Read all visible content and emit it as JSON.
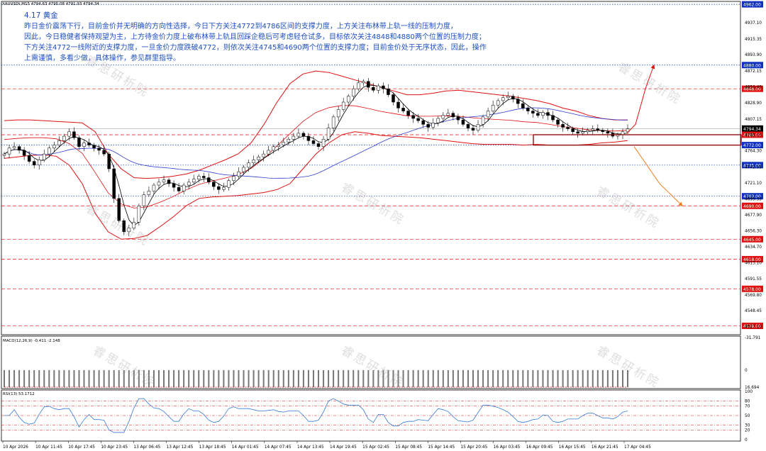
{
  "symbol_header": "XAUUSDt,M15  4794.63 4795.08 4791.93 4794.34",
  "annotation": {
    "title": "4.17 黄金",
    "lines": [
      "昨日金价震荡下行，目前金价并无明确的方向性选择，今日下方关注4772到4786区间的支撑力度，上方关注布林带上轨一线的压制力度，",
      "因此，今日稳健者保持观望为主，上方待金价力度上破布林带上轨且回踩企稳后可考虑轻仓试多，目标依次关注4848和4880两个位置的压制力度；",
      "下方关注4772一线附近的支撑力度，一旦金价力度跌破4772，则依次关注4745和4690两个位置的支撑力度；目前金价处于无序状态，因此，操作",
      "上需谨慎，多看少做，具体操作，参见群里指导。"
    ]
  },
  "watermark": "睿思研析院",
  "colors": {
    "red_band": "#e01010",
    "blue_ma": "#2f3fcf",
    "black_ma": "#000000",
    "arrow_up": "#e01010",
    "arrow_down": "#f08020",
    "level_blue": "#1030c0",
    "level_red": "#e01010",
    "bar_up": "#000000",
    "rsi_line": "#3a7bd5",
    "macd_signal": "#e01010"
  },
  "chart_data": {
    "type": "candlestick",
    "ylim": [
      4518,
      4964
    ],
    "x_ticks": [
      "10 Apr 2026",
      "10 Apr 11:45",
      "10 Apr 17:45",
      "10 Apr 23:45",
      "13 Apr 06:45",
      "13 Apr 12:45",
      "13 Apr 18:45",
      "14 Apr 01:45",
      "14 Apr 07:45",
      "14 Apr 13:45",
      "14 Apr 19:45",
      "15 Apr 02:45",
      "15 Apr 08:45",
      "15 Apr 14:45",
      "15 Apr 20:45",
      "16 Apr 03:45",
      "16 Apr 09:45",
      "16 Apr 15:45",
      "16 Apr 21:45",
      "17 Apr 04:45"
    ],
    "y_ticks": [
      4937.1,
      4915.35,
      4893.9,
      4872.15,
      4850.4,
      4828.9,
      4807.15,
      4785.65,
      4764.3,
      4742.55,
      4721.1,
      4699.35,
      4677.9,
      4656.3,
      4634.7,
      4613.1,
      4591.55,
      4569.8,
      4548.45,
      4527.1
    ],
    "price_levels": [
      {
        "label": "4962.00",
        "value": 4962,
        "color": "blue",
        "style": "dotted"
      },
      {
        "label": "4880.00",
        "value": 4880,
        "color": "blue",
        "style": "dotted"
      },
      {
        "label": "4848.00",
        "value": 4848,
        "color": "red",
        "style": "dashed"
      },
      {
        "label": "4794.34",
        "value": 4794.34,
        "color": "black",
        "style": "current"
      },
      {
        "label": "4786.00",
        "value": 4786,
        "color": "red",
        "style": "dashed"
      },
      {
        "label": "4772.00",
        "value": 4772,
        "color": "blue",
        "style": "dotted"
      },
      {
        "label": "4745.00",
        "value": 4745,
        "color": "blue",
        "style": "dotted"
      },
      {
        "label": "4703.00",
        "value": 4703,
        "color": "blue",
        "style": "dotted"
      },
      {
        "label": "4690.00",
        "value": 4690,
        "color": "red",
        "style": "dashed"
      },
      {
        "label": "4645.00",
        "value": 4645,
        "color": "red",
        "style": "dashed"
      },
      {
        "label": "4618.00",
        "value": 4618,
        "color": "red",
        "style": "dashed"
      },
      {
        "label": "4578.00",
        "value": 4578,
        "color": "red",
        "style": "dashed"
      },
      {
        "label": "4528.00",
        "value": 4528,
        "color": "red",
        "style": "dashed"
      }
    ],
    "key_levels_price": [
      4772,
      4786
    ],
    "closes": [
      4760,
      4768,
      4770,
      4765,
      4758,
      4750,
      4745,
      4752,
      4760,
      4768,
      4772,
      4778,
      4784,
      4790,
      4782,
      4770,
      4775,
      4772,
      4768,
      4765,
      4760,
      4740,
      4700,
      4670,
      4655,
      4660,
      4668,
      4690,
      4705,
      4710,
      4718,
      4722,
      4725,
      4720,
      4715,
      4710,
      4718,
      4722,
      4726,
      4730,
      4728,
      4722,
      4716,
      4712,
      4715,
      4724,
      4730,
      4736,
      4742,
      4748,
      4752,
      4756,
      4760,
      4765,
      4770,
      4772,
      4776,
      4780,
      4784,
      4788,
      4784,
      4778,
      4774,
      4770,
      4780,
      4795,
      4810,
      4820,
      4830,
      4838,
      4848,
      4856,
      4858,
      4850,
      4846,
      4852,
      4848,
      4840,
      4830,
      4822,
      4818,
      4812,
      4808,
      4805,
      4800,
      4796,
      4802,
      4808,
      4812,
      4815,
      4810,
      4806,
      4800,
      4795,
      4792,
      4800,
      4810,
      4818,
      4826,
      4832,
      4836,
      4838,
      4834,
      4828,
      4822,
      4818,
      4815,
      4812,
      4816,
      4812,
      4806,
      4800,
      4796,
      4794,
      4790,
      4788,
      4790,
      4792,
      4794,
      4792,
      4790,
      4788,
      4784,
      4786,
      4790,
      4794
    ],
    "bollinger_upper_price": [
      4805,
      4806,
      4806,
      4805,
      4804,
      4803,
      4802,
      4790,
      4760,
      4740,
      4728,
      4727,
      4728,
      4730,
      4733,
      4738,
      4745,
      4752,
      4760,
      4775,
      4800,
      4830,
      4855,
      4868,
      4872,
      4870,
      4865,
      4860,
      4855,
      4850,
      4845,
      4840,
      4840,
      4842,
      4845,
      4846,
      4844,
      4842,
      4840,
      4838,
      4835,
      4832,
      4828,
      4822,
      4818,
      4812,
      4808,
      4806,
      4806
    ],
    "bollinger_lower_price": [
      4754,
      4756,
      4758,
      4759,
      4757,
      4745,
      4720,
      4680,
      4655,
      4645,
      4646,
      4650,
      4662,
      4675,
      4690,
      4700,
      4702,
      4703,
      4704,
      4706,
      4708,
      4712,
      4720,
      4740,
      4760,
      4775,
      4786,
      4790,
      4788,
      4785,
      4784,
      4783,
      4782,
      4780,
      4778,
      4776,
      4774,
      4773,
      4773,
      4773,
      4772,
      4773,
      4772,
      4772,
      4772,
      4773,
      4775,
      4776,
      4778
    ],
    "macd": {
      "label": "MACD(12,26,9) -0.411 -2.148",
      "ylim": [
        -31.791,
        16.694
      ],
      "y_ticks": [
        16.694,
        0.0,
        -31.791
      ]
    },
    "rsi": {
      "label": "RSI(13) 53.1712",
      "levels": [
        80,
        70,
        50,
        30,
        20
      ],
      "y_ticks": [
        100,
        80,
        70,
        50,
        30,
        20,
        0
      ]
    },
    "arrow_up_target": 4880,
    "arrow_down_target": 4690
  }
}
